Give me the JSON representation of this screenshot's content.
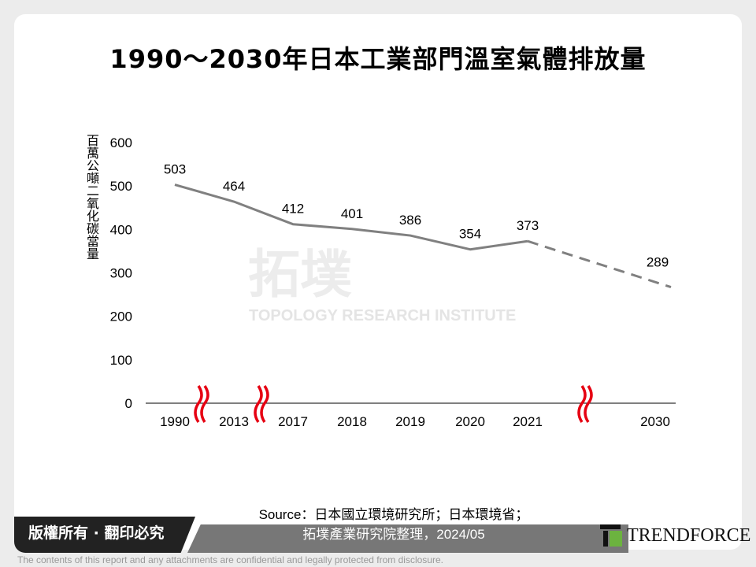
{
  "chart_data": {
    "type": "line",
    "title": "1990～2030年日本工業部門溫室氣體排放量",
    "ylabel": "百萬公噸二氧化碳當量",
    "xlabel": "",
    "ylim": [
      0,
      600
    ],
    "yticks": [
      "0",
      "100",
      "200",
      "300",
      "400",
      "500",
      "600"
    ],
    "categories": [
      "1990",
      "2013",
      "2017",
      "2018",
      "2019",
      "2020",
      "2021",
      "2030"
    ],
    "values": [
      503,
      464,
      412,
      401,
      386,
      354,
      373,
      289
    ],
    "projected_from": "2021",
    "axis_breaks": [
      "1990-2013",
      "2013-2017",
      "2021-2030"
    ],
    "line_color": "#808080",
    "break_color": "#e60012"
  },
  "watermark": {
    "line1": "拓墣",
    "line2": "TOPOLOGY RESEARCH INSTITUTE"
  },
  "footer": {
    "copyright": "版權所有 · 翻印必究",
    "source_line1": "Source：日本國立環境研究所；日本環境省；",
    "source_line2": "拓墣產業研究院整理，2024/05",
    "logo": "TRENDFORCE",
    "disclaimer": "The contents of this report and any attachments are confidential and legally protected from disclosure."
  }
}
